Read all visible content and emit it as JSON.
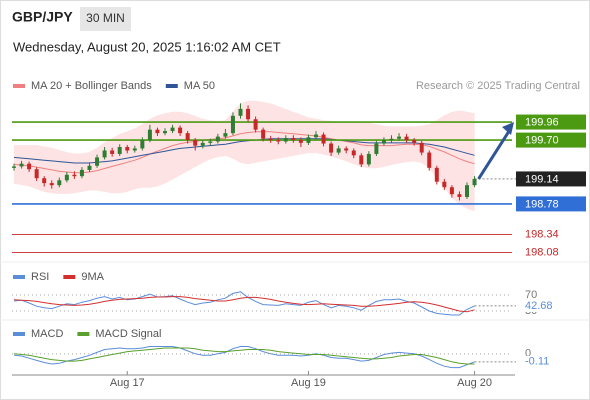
{
  "header": {
    "symbol": "GBP/JPY",
    "interval": "30 MIN",
    "datetime": "Wednesday, August 20, 2025 1:16:02 AM CET",
    "copyright": "Research © 2025 Trading Central"
  },
  "chart_data": [
    {
      "type": "candlestick",
      "categories": [
        null,
        null,
        null,
        null,
        null,
        null,
        null,
        null,
        null,
        null,
        null,
        null,
        null,
        null,
        null,
        "Aug 17",
        null,
        null,
        null,
        null,
        null,
        null,
        null,
        null,
        null,
        null,
        null,
        null,
        null,
        null,
        null,
        null,
        null,
        null,
        null,
        null,
        null,
        null,
        null,
        "Aug 19",
        null,
        null,
        null,
        null,
        null,
        null,
        null,
        null,
        null,
        null,
        null,
        null,
        null,
        null,
        null,
        null,
        null,
        null,
        null,
        null,
        null,
        "Aug 20"
      ],
      "open": [
        199.3,
        199.32,
        199.36,
        199.28,
        199.15,
        199.08,
        199.05,
        199.12,
        199.2,
        199.18,
        199.27,
        199.33,
        199.45,
        199.55,
        199.5,
        199.6,
        199.55,
        199.58,
        199.7,
        199.85,
        199.8,
        199.83,
        199.88,
        199.8,
        199.7,
        199.62,
        199.66,
        199.68,
        199.75,
        199.8,
        200.05,
        200.15,
        200.0,
        199.85,
        199.72,
        199.7,
        199.68,
        199.73,
        199.7,
        199.66,
        199.74,
        199.78,
        199.65,
        199.52,
        199.58,
        199.55,
        199.48,
        199.35,
        199.5,
        199.65,
        199.7,
        199.72,
        199.75,
        199.7,
        199.66,
        199.52,
        199.3,
        199.1,
        199.02,
        198.92,
        198.88,
        199.05
      ],
      "high": [
        199.36,
        199.4,
        199.39,
        199.31,
        199.18,
        199.12,
        199.16,
        199.24,
        199.25,
        199.31,
        199.38,
        199.49,
        199.6,
        199.59,
        199.64,
        199.63,
        199.62,
        199.74,
        199.92,
        199.88,
        199.87,
        199.92,
        199.91,
        199.83,
        199.73,
        199.7,
        199.72,
        199.79,
        199.86,
        200.1,
        200.23,
        200.2,
        200.04,
        199.88,
        199.76,
        199.74,
        199.77,
        199.77,
        199.74,
        199.78,
        199.83,
        199.81,
        199.68,
        199.62,
        199.61,
        199.58,
        199.51,
        199.54,
        199.69,
        199.74,
        199.77,
        199.8,
        199.79,
        199.73,
        199.69,
        199.55,
        199.33,
        199.14,
        199.05,
        198.96,
        199.09,
        199.18
      ],
      "low": [
        199.26,
        199.29,
        199.24,
        199.11,
        199.03,
        199.0,
        199.02,
        199.09,
        199.14,
        199.15,
        199.24,
        199.3,
        199.42,
        199.46,
        199.47,
        199.51,
        199.52,
        199.55,
        199.67,
        199.76,
        199.77,
        199.8,
        199.76,
        199.65,
        199.55,
        199.58,
        199.62,
        199.65,
        199.72,
        199.77,
        200.01,
        199.96,
        199.81,
        199.68,
        199.66,
        199.64,
        199.65,
        199.66,
        199.6,
        199.63,
        199.71,
        199.61,
        199.47,
        199.49,
        199.51,
        199.44,
        199.31,
        199.32,
        199.47,
        199.62,
        199.66,
        199.69,
        199.66,
        199.62,
        199.48,
        199.26,
        199.06,
        198.98,
        198.87,
        198.83,
        198.85,
        199.02
      ],
      "close": [
        199.32,
        199.36,
        199.28,
        199.15,
        199.08,
        199.05,
        199.12,
        199.2,
        199.18,
        199.27,
        199.33,
        199.45,
        199.55,
        199.5,
        199.6,
        199.55,
        199.58,
        199.7,
        199.85,
        199.8,
        199.83,
        199.88,
        199.8,
        199.7,
        199.62,
        199.66,
        199.68,
        199.75,
        199.8,
        200.05,
        200.15,
        200.0,
        199.85,
        199.72,
        199.7,
        199.68,
        199.73,
        199.7,
        199.66,
        199.74,
        199.78,
        199.65,
        199.52,
        199.58,
        199.55,
        199.48,
        199.35,
        199.5,
        199.65,
        199.7,
        199.72,
        199.75,
        199.7,
        199.66,
        199.52,
        199.3,
        199.1,
        199.02,
        198.92,
        198.88,
        199.05,
        199.14
      ],
      "up_color": "#2e7d32",
      "down_color": "#c62828",
      "ylim": [
        198.0,
        200.35
      ],
      "series": [
        {
          "name": "MA 20 + Bollinger Bands",
          "color": "#f08080",
          "band_color": "#fde3e3",
          "values": [
            199.35,
            199.34,
            199.33,
            199.31,
            199.29,
            199.27,
            199.25,
            199.24,
            199.23,
            199.23,
            199.24,
            199.26,
            199.29,
            199.32,
            199.35,
            199.38,
            199.41,
            199.45,
            199.5,
            199.54,
            199.58,
            199.62,
            199.65,
            199.67,
            199.68,
            199.7,
            199.71,
            199.72,
            199.73,
            199.76,
            199.79,
            199.81,
            199.82,
            199.82,
            199.82,
            199.81,
            199.8,
            199.79,
            199.78,
            199.77,
            199.76,
            199.74,
            199.72,
            199.7,
            199.68,
            199.66,
            199.63,
            199.62,
            199.62,
            199.62,
            199.62,
            199.63,
            199.64,
            199.64,
            199.63,
            199.61,
            199.57,
            199.53,
            199.48,
            199.43,
            199.39,
            199.36
          ],
          "upper": [
            199.62,
            199.62,
            199.62,
            199.62,
            199.6,
            199.58,
            199.55,
            199.52,
            199.5,
            199.5,
            199.52,
            199.58,
            199.66,
            199.72,
            199.78,
            199.82,
            199.86,
            199.92,
            200.0,
            200.05,
            200.08,
            200.1,
            200.1,
            200.08,
            200.04,
            200.0,
            199.98,
            199.97,
            199.98,
            200.1,
            200.22,
            200.26,
            200.26,
            200.24,
            200.22,
            200.18,
            200.14,
            200.1,
            200.06,
            200.02,
            200.0,
            199.98,
            199.97,
            199.96,
            199.96,
            199.96,
            199.96,
            199.94,
            199.92,
            199.9,
            199.89,
            199.89,
            199.89,
            199.89,
            199.9,
            199.92,
            199.98,
            200.05,
            200.1,
            200.12,
            200.1,
            200.08
          ],
          "lower": [
            199.08,
            199.06,
            199.04,
            199.0,
            198.96,
            198.94,
            198.93,
            198.93,
            198.94,
            198.96,
            198.98,
            198.98,
            198.96,
            198.94,
            198.94,
            198.96,
            199.0,
            199.02,
            199.02,
            199.04,
            199.08,
            199.14,
            199.2,
            199.26,
            199.32,
            199.38,
            199.43,
            199.46,
            199.48,
            199.44,
            199.38,
            199.36,
            199.38,
            199.4,
            199.42,
            199.44,
            199.46,
            199.48,
            199.5,
            199.52,
            199.52,
            199.5,
            199.47,
            199.44,
            199.4,
            199.36,
            199.32,
            199.3,
            199.3,
            199.32,
            199.35,
            199.37,
            199.39,
            199.4,
            199.38,
            199.3,
            199.16,
            199.02,
            198.88,
            198.78,
            198.72,
            198.68
          ]
        },
        {
          "name": "MA 50",
          "color": "#2f5597",
          "values": [
            199.45,
            199.44,
            199.43,
            199.42,
            199.41,
            199.4,
            199.39,
            199.38,
            199.37,
            199.37,
            199.37,
            199.38,
            199.39,
            199.4,
            199.42,
            199.44,
            199.46,
            199.48,
            199.5,
            199.52,
            199.54,
            199.56,
            199.58,
            199.59,
            199.6,
            199.61,
            199.62,
            199.63,
            199.64,
            199.66,
            199.68,
            199.69,
            199.7,
            199.71,
            199.72,
            199.72,
            199.72,
            199.72,
            199.72,
            199.72,
            199.72,
            199.72,
            199.71,
            199.7,
            199.69,
            199.68,
            199.67,
            199.66,
            199.66,
            199.66,
            199.66,
            199.66,
            199.66,
            199.66,
            199.65,
            199.64,
            199.62,
            199.6,
            199.57,
            199.54,
            199.51,
            199.48
          ]
        }
      ],
      "levels": [
        {
          "value": 199.96,
          "color": "#4c9a12",
          "style": "box"
        },
        {
          "value": 199.7,
          "label": "199.70",
          "color": "#4c9a12",
          "style": "box"
        },
        {
          "value": 199.14,
          "color": "#222222",
          "style": "current"
        },
        {
          "value": 198.78,
          "color": "#2f6fd6",
          "style": "box"
        },
        {
          "value": 198.34,
          "color": "#c62828",
          "style": "text"
        },
        {
          "value": 198.08,
          "color": "#c62828",
          "style": "text"
        }
      ]
    },
    {
      "type": "line",
      "ylim": [
        15,
        90
      ],
      "yticks": [
        70,
        30
      ],
      "series": [
        {
          "name": "RSI",
          "color": "#5b8dd9",
          "values": [
            55,
            57,
            50,
            42,
            38,
            36,
            42,
            48,
            46,
            52,
            56,
            62,
            66,
            60,
            64,
            58,
            60,
            66,
            72,
            65,
            66,
            68,
            60,
            52,
            46,
            50,
            52,
            58,
            62,
            74,
            78,
            64,
            54,
            46,
            45,
            44,
            48,
            46,
            44,
            52,
            56,
            46,
            38,
            44,
            42,
            38,
            32,
            44,
            54,
            58,
            58,
            60,
            54,
            50,
            40,
            30,
            24,
            22,
            20,
            20,
            34,
            42.68
          ]
        },
        {
          "name": "9MA",
          "color": "#d32f2f",
          "values": [
            58,
            57,
            56,
            54,
            51,
            48,
            46,
            45,
            44,
            45,
            47,
            50,
            54,
            57,
            59,
            60,
            61,
            62,
            64,
            65,
            65,
            66,
            66,
            64,
            61,
            59,
            57,
            55,
            55,
            58,
            62,
            64,
            64,
            62,
            59,
            55,
            52,
            49,
            47,
            46,
            47,
            48,
            47,
            46,
            45,
            44,
            42,
            42,
            43,
            45,
            47,
            49,
            52,
            53,
            52,
            49,
            45,
            40,
            35,
            30,
            28,
            33
          ]
        }
      ]
    },
    {
      "type": "line",
      "ylim": [
        -0.25,
        0.19
      ],
      "yticks": [
        0
      ],
      "series": [
        {
          "name": "MACD",
          "color": "#5b8dd9",
          "values": [
            -0.02,
            -0.03,
            -0.06,
            -0.09,
            -0.12,
            -0.14,
            -0.13,
            -0.1,
            -0.08,
            -0.05,
            -0.02,
            0.02,
            0.06,
            0.07,
            0.08,
            0.07,
            0.07,
            0.08,
            0.1,
            0.1,
            0.1,
            0.1,
            0.08,
            0.04,
            0.0,
            -0.02,
            -0.02,
            0.0,
            0.02,
            0.07,
            0.1,
            0.1,
            0.07,
            0.03,
            0.0,
            -0.02,
            -0.02,
            -0.02,
            -0.03,
            -0.02,
            0.0,
            -0.02,
            -0.05,
            -0.06,
            -0.06,
            -0.08,
            -0.1,
            -0.09,
            -0.05,
            -0.01,
            0.01,
            0.02,
            0.01,
            0.0,
            -0.03,
            -0.08,
            -0.13,
            -0.17,
            -0.19,
            -0.19,
            -0.15,
            -0.11
          ]
        },
        {
          "name": "MACD Signal",
          "color": "#5aa02c",
          "values": [
            0.0,
            -0.01,
            -0.02,
            -0.04,
            -0.06,
            -0.08,
            -0.09,
            -0.1,
            -0.1,
            -0.09,
            -0.07,
            -0.05,
            -0.03,
            -0.01,
            0.01,
            0.03,
            0.04,
            0.05,
            0.06,
            0.07,
            0.08,
            0.08,
            0.08,
            0.08,
            0.07,
            0.05,
            0.04,
            0.03,
            0.03,
            0.04,
            0.05,
            0.06,
            0.06,
            0.06,
            0.05,
            0.03,
            0.02,
            0.01,
            0.0,
            -0.01,
            -0.01,
            -0.01,
            -0.02,
            -0.03,
            -0.04,
            -0.05,
            -0.06,
            -0.07,
            -0.07,
            -0.06,
            -0.05,
            -0.03,
            -0.02,
            -0.01,
            -0.01,
            -0.03,
            -0.05,
            -0.08,
            -0.11,
            -0.13,
            -0.14,
            -0.14
          ]
        }
      ]
    }
  ]
}
